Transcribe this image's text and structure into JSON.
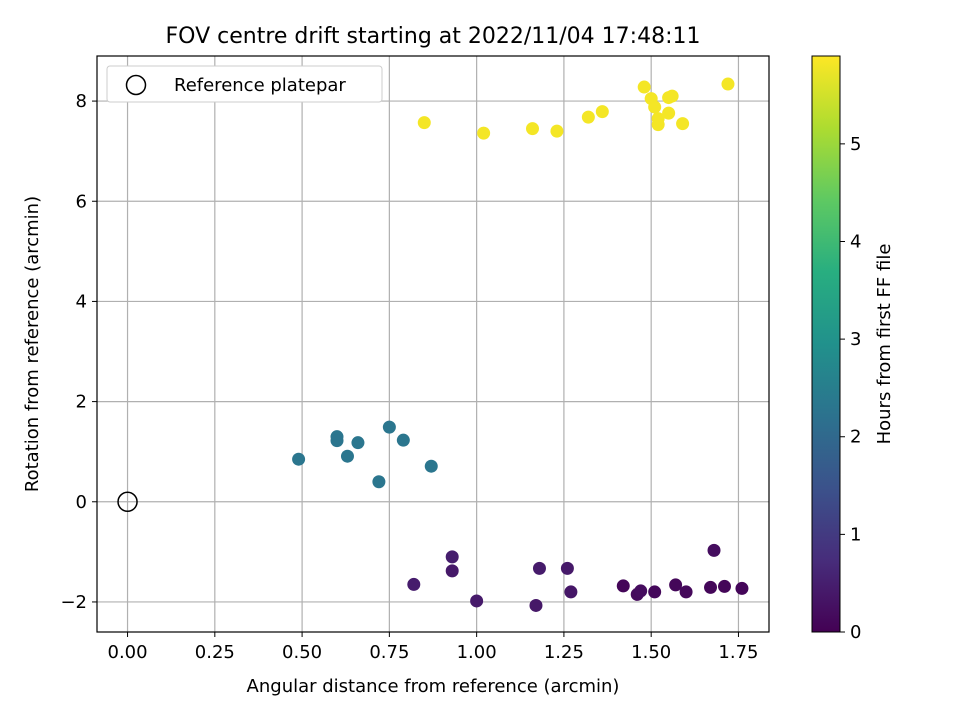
{
  "chart_data": {
    "type": "scatter",
    "title": "FOV centre drift starting at 2022/11/04 17:48:11",
    "xlabel": "Angular distance from reference (arcmin)",
    "ylabel": "Rotation from reference (arcmin)",
    "xlim": [
      -0.0875,
      1.8375
    ],
    "ylim": [
      -2.6,
      8.9
    ],
    "xticks": [
      0.0,
      0.25,
      0.5,
      0.75,
      1.0,
      1.25,
      1.5,
      1.75
    ],
    "xtick_labels": [
      "0.00",
      "0.25",
      "0.50",
      "0.75",
      "1.00",
      "1.25",
      "1.50",
      "1.75"
    ],
    "yticks": [
      -2,
      0,
      2,
      4,
      6,
      8
    ],
    "ytick_labels": [
      "−2",
      "0",
      "2",
      "4",
      "6",
      "8"
    ],
    "grid": true,
    "legend": {
      "position": "top-left",
      "entries": [
        "Reference platepar"
      ]
    },
    "reference_point": {
      "x": 0.0,
      "y": 0.0
    },
    "colorbar": {
      "label": "Hours from first FF file",
      "min": 0,
      "max": 5.9,
      "ticks": [
        0,
        1,
        2,
        3,
        4,
        5
      ],
      "colormap": "viridis"
    },
    "series": [
      {
        "points": [
          {
            "x": 1.42,
            "y": -1.68,
            "c": 0.08
          },
          {
            "x": 1.46,
            "y": -1.85,
            "c": 0.15
          },
          {
            "x": 1.47,
            "y": -1.78,
            "c": 0.18
          },
          {
            "x": 1.51,
            "y": -1.8,
            "c": 0.12
          },
          {
            "x": 1.57,
            "y": -1.66,
            "c": 0.1
          },
          {
            "x": 1.6,
            "y": -1.8,
            "c": 0.14
          },
          {
            "x": 1.67,
            "y": -1.71,
            "c": 0.1
          },
          {
            "x": 1.71,
            "y": -1.69,
            "c": 0.08
          },
          {
            "x": 1.76,
            "y": -1.73,
            "c": 0.09
          },
          {
            "x": 1.68,
            "y": -0.97,
            "c": 0.2
          },
          {
            "x": 0.82,
            "y": -1.65,
            "c": 0.45
          },
          {
            "x": 0.93,
            "y": -1.1,
            "c": 0.48
          },
          {
            "x": 0.93,
            "y": -1.38,
            "c": 0.4
          },
          {
            "x": 1.0,
            "y": -1.98,
            "c": 0.42
          },
          {
            "x": 1.17,
            "y": -2.07,
            "c": 0.38
          },
          {
            "x": 1.18,
            "y": -1.33,
            "c": 0.44
          },
          {
            "x": 1.26,
            "y": -1.33,
            "c": 0.4
          },
          {
            "x": 1.27,
            "y": -1.8,
            "c": 0.36
          },
          {
            "x": 0.49,
            "y": 0.85,
            "c": 2.3
          },
          {
            "x": 0.6,
            "y": 1.3,
            "c": 2.3
          },
          {
            "x": 0.6,
            "y": 1.22,
            "c": 2.28
          },
          {
            "x": 0.63,
            "y": 0.91,
            "c": 2.3
          },
          {
            "x": 0.66,
            "y": 1.18,
            "c": 2.3
          },
          {
            "x": 0.72,
            "y": 0.4,
            "c": 2.3
          },
          {
            "x": 0.75,
            "y": 1.49,
            "c": 2.3
          },
          {
            "x": 0.79,
            "y": 1.23,
            "c": 2.3
          },
          {
            "x": 0.87,
            "y": 0.71,
            "c": 2.3
          },
          {
            "x": 0.85,
            "y": 7.57,
            "c": 5.82
          },
          {
            "x": 1.02,
            "y": 7.36,
            "c": 5.82
          },
          {
            "x": 1.16,
            "y": 7.45,
            "c": 5.82
          },
          {
            "x": 1.23,
            "y": 7.4,
            "c": 5.82
          },
          {
            "x": 1.32,
            "y": 7.68,
            "c": 5.82
          },
          {
            "x": 1.36,
            "y": 7.79,
            "c": 5.82
          },
          {
            "x": 1.48,
            "y": 8.28,
            "c": 5.82
          },
          {
            "x": 1.5,
            "y": 8.05,
            "c": 5.82
          },
          {
            "x": 1.51,
            "y": 7.88,
            "c": 5.82
          },
          {
            "x": 1.52,
            "y": 7.53,
            "c": 5.82
          },
          {
            "x": 1.52,
            "y": 7.65,
            "c": 5.82
          },
          {
            "x": 1.55,
            "y": 7.76,
            "c": 5.82
          },
          {
            "x": 1.55,
            "y": 8.07,
            "c": 5.82
          },
          {
            "x": 1.56,
            "y": 8.1,
            "c": 5.82
          },
          {
            "x": 1.59,
            "y": 7.55,
            "c": 5.82
          },
          {
            "x": 1.72,
            "y": 8.34,
            "c": 5.82
          }
        ]
      }
    ]
  }
}
